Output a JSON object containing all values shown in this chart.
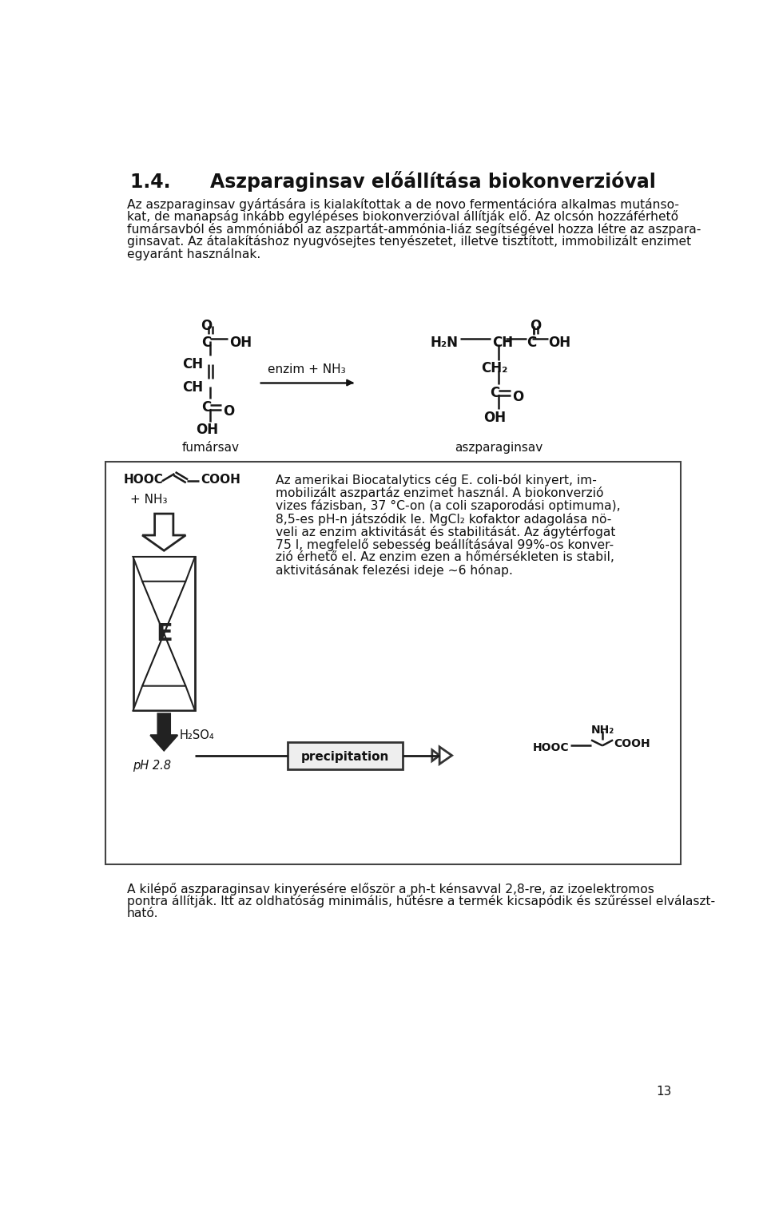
{
  "bg_color": "#ffffff",
  "text_color": "#111111",
  "page_number": "13",
  "title": "1.4.      Aszparaginsav előállítása biokonverzióval",
  "para1_lines": [
    "Az aszparaginsav gyártására is kialakítottak a de novo fermentációra alkalmas mutánso-",
    "kat, de manapság inkább egylépéses biokonverzióval állítják elő. Az olcsón hozzáférhető",
    "fumársavból és ammóniából az aszpartát-ammónia-liáz segítségével hozza létre az aszpara-",
    "ginsavat. Az átalakításhoz nyugvósejtes tenyészetet, illetve tisztított, immobilizált enzimet",
    "egyaránt használnak."
  ],
  "label_fumar": "fumársav",
  "label_aszp": "aszparaginsav",
  "enzim_label": "enzim + NH₃",
  "para2_lines": [
    "Az amerikai Biocatalytics cég E. coli-ból kinyert, im-",
    "mobilizált aszpartáz enzimet használ. A biokonverzió",
    "vizes fázisban, 37 °C-on (a coli szaporodási optimuma),",
    "8,5-es pH-n játszódik le. MgCl₂ kofaktor adagolása nö-",
    "veli az enzim aktivitását és stabilitását. Az ágytérfogat",
    "75 l, megfelelő sebesség beállításával 99%-os konver-",
    "zió érhető el. Az enzim ezen a hőmérsékleten is stabil,",
    "aktivitásának felezési ideje ~6 hónap."
  ],
  "para3_lines": [
    "A kilépő aszparaginsav kinyerésére először a ph-t kénsavval 2,8-re, az izoelektromos",
    "pontra állítják. Itt az oldhatóság minimális, hűtésre a termék kicsapódik és szűréssel elválaszt-",
    "ható."
  ]
}
